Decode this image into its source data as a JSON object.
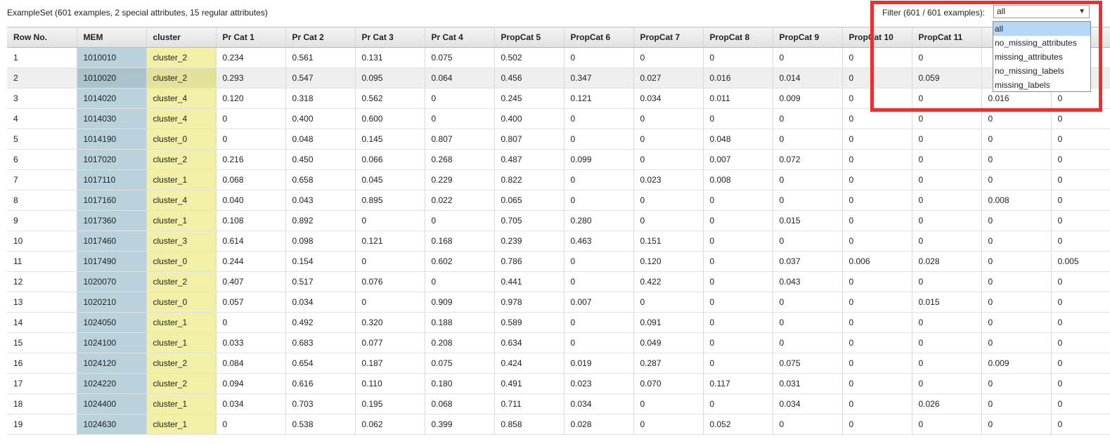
{
  "summary": "ExampleSet (601 examples, 2 special attributes, 15 regular attributes)",
  "filter": {
    "label": "Filter (601 / 601 examples):",
    "selected": "all",
    "options": [
      "all",
      "no_missing_attributes",
      "missing_attributes",
      "no_missing_labels",
      "missing_labels"
    ]
  },
  "colors": {
    "id_column": "#b9d2dc",
    "cluster_column": "#f1f0a6",
    "highlight": "#ee2f2f",
    "option_selected": "#b6d7f5"
  },
  "table": {
    "columns": [
      "Row No.",
      "MEM",
      "cluster",
      "Pr Cat 1",
      "Pr Cat 2",
      "Pr Cat 3",
      "Pr Cat 4",
      "PropCat 5",
      "PropCat 6",
      "PropCat 7",
      "PropCat 8",
      "PropCat 9",
      "PropCat 10",
      "PropCat 11",
      "",
      ""
    ],
    "rows": [
      [
        "1",
        "1010010",
        "cluster_2",
        "0.234",
        "0.561",
        "0.131",
        "0.075",
        "0.502",
        "0",
        "0",
        "0",
        "0",
        "0",
        "0",
        "",
        ""
      ],
      [
        "2",
        "1010020",
        "cluster_2",
        "0.293",
        "0.547",
        "0.095",
        "0.064",
        "0.456",
        "0.347",
        "0.027",
        "0.016",
        "0.014",
        "0",
        "0.059",
        "",
        ""
      ],
      [
        "3",
        "1014020",
        "cluster_4",
        "0.120",
        "0.318",
        "0.562",
        "0",
        "0.245",
        "0.121",
        "0.034",
        "0.011",
        "0.009",
        "0",
        "0",
        "0.016",
        "0"
      ],
      [
        "4",
        "1014030",
        "cluster_4",
        "0",
        "0.400",
        "0.600",
        "0",
        "0.400",
        "0",
        "0",
        "0",
        "0",
        "0",
        "0",
        "0",
        "0"
      ],
      [
        "5",
        "1014190",
        "cluster_0",
        "0",
        "0.048",
        "0.145",
        "0.807",
        "0.807",
        "0",
        "0",
        "0.048",
        "0",
        "0",
        "0",
        "0",
        "0"
      ],
      [
        "6",
        "1017020",
        "cluster_2",
        "0.216",
        "0.450",
        "0.066",
        "0.268",
        "0.487",
        "0.099",
        "0",
        "0.007",
        "0.072",
        "0",
        "0",
        "0",
        "0"
      ],
      [
        "7",
        "1017110",
        "cluster_1",
        "0.068",
        "0.658",
        "0.045",
        "0.229",
        "0.822",
        "0",
        "0.023",
        "0.008",
        "0",
        "0",
        "0",
        "0",
        "0"
      ],
      [
        "8",
        "1017160",
        "cluster_4",
        "0.040",
        "0.043",
        "0.895",
        "0.022",
        "0.065",
        "0",
        "0",
        "0",
        "0",
        "0",
        "0",
        "0.008",
        "0"
      ],
      [
        "9",
        "1017360",
        "cluster_1",
        "0.108",
        "0.892",
        "0",
        "0",
        "0.705",
        "0.280",
        "0",
        "0",
        "0.015",
        "0",
        "0",
        "0",
        "0"
      ],
      [
        "10",
        "1017460",
        "cluster_3",
        "0.614",
        "0.098",
        "0.121",
        "0.168",
        "0.239",
        "0.463",
        "0.151",
        "0",
        "0",
        "0",
        "0",
        "0",
        "0"
      ],
      [
        "11",
        "1017490",
        "cluster_0",
        "0.244",
        "0.154",
        "0",
        "0.602",
        "0.786",
        "0",
        "0.120",
        "0",
        "0.037",
        "0.006",
        "0.028",
        "0",
        "0.005"
      ],
      [
        "12",
        "1020070",
        "cluster_2",
        "0.407",
        "0.517",
        "0.076",
        "0",
        "0.441",
        "0",
        "0.422",
        "0",
        "0.043",
        "0",
        "0",
        "0",
        "0"
      ],
      [
        "13",
        "1020210",
        "cluster_0",
        "0.057",
        "0.034",
        "0",
        "0.909",
        "0.978",
        "0.007",
        "0",
        "0",
        "0",
        "0",
        "0.015",
        "0",
        "0"
      ],
      [
        "14",
        "1024050",
        "cluster_1",
        "0",
        "0.492",
        "0.320",
        "0.188",
        "0.589",
        "0",
        "0.091",
        "0",
        "0",
        "0",
        "0",
        "0",
        "0"
      ],
      [
        "15",
        "1024100",
        "cluster_1",
        "0.033",
        "0.683",
        "0.077",
        "0.208",
        "0.634",
        "0",
        "0.049",
        "0",
        "0",
        "0",
        "0",
        "0",
        "0"
      ],
      [
        "16",
        "1024120",
        "cluster_2",
        "0.084",
        "0.654",
        "0.187",
        "0.075",
        "0.424",
        "0.019",
        "0.287",
        "0",
        "0.075",
        "0",
        "0",
        "0.009",
        "0"
      ],
      [
        "17",
        "1024220",
        "cluster_2",
        "0.094",
        "0.616",
        "0.110",
        "0.180",
        "0.491",
        "0.023",
        "0.070",
        "0.117",
        "0.031",
        "0",
        "0",
        "0",
        "0"
      ],
      [
        "18",
        "1024400",
        "cluster_1",
        "0.034",
        "0.703",
        "0.195",
        "0.068",
        "0.711",
        "0.034",
        "0",
        "0",
        "0.034",
        "0",
        "0.026",
        "0",
        "0"
      ],
      [
        "19",
        "1024630",
        "cluster_1",
        "0",
        "0.538",
        "0.062",
        "0.399",
        "0.858",
        "0.028",
        "0",
        "0.052",
        "0",
        "0",
        "0",
        "0",
        "0"
      ]
    ]
  }
}
